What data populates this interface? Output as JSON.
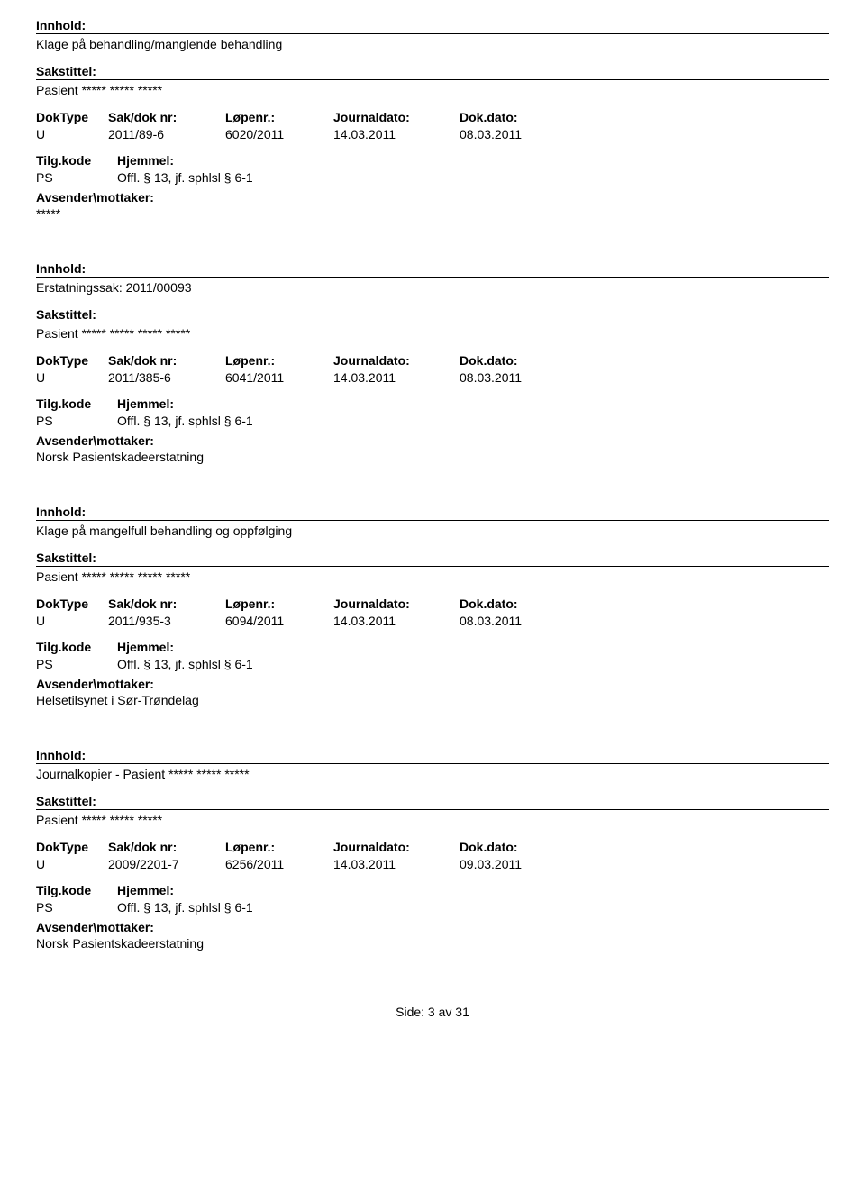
{
  "labels": {
    "innhold": "Innhold:",
    "sakstittel": "Sakstittel:",
    "doktype": "DokType",
    "sakdoknr": "Sak/dok nr:",
    "lopenr": "Løpenr.:",
    "journaldato": "Journaldato:",
    "dokdato": "Dok.dato:",
    "tilgkode": "Tilg.kode",
    "hjemmel": "Hjemmel:",
    "avsender": "Avsender\\mottaker:"
  },
  "records": [
    {
      "innhold": "Klage på behandling/manglende behandling",
      "sakstittel": "Pasient ***** ***** *****",
      "doktype": "U",
      "sakdoknr": "2011/89-6",
      "lopenr": "6020/2011",
      "journaldato": "14.03.2011",
      "dokdato": "08.03.2011",
      "tilgkode": "PS",
      "hjemmel": "Offl. § 13, jf. sphlsl § 6-1",
      "avsender": "*****"
    },
    {
      "innhold": "Erstatningssak: 2011/00093",
      "sakstittel": "Pasient ***** ***** ***** *****",
      "doktype": "U",
      "sakdoknr": "2011/385-6",
      "lopenr": "6041/2011",
      "journaldato": "14.03.2011",
      "dokdato": "08.03.2011",
      "tilgkode": "PS",
      "hjemmel": "Offl. § 13, jf. sphlsl § 6-1",
      "avsender": "Norsk Pasientskadeerstatning"
    },
    {
      "innhold": "Klage på mangelfull behandling og oppfølging",
      "sakstittel": "Pasient ***** ***** ***** *****",
      "doktype": "U",
      "sakdoknr": "2011/935-3",
      "lopenr": "6094/2011",
      "journaldato": "14.03.2011",
      "dokdato": "08.03.2011",
      "tilgkode": "PS",
      "hjemmel": "Offl. § 13, jf. sphlsl § 6-1",
      "avsender": "Helsetilsynet i Sør-Trøndelag"
    },
    {
      "innhold": "Journalkopier - Pasient ***** ***** *****",
      "sakstittel": "Pasient ***** ***** *****",
      "doktype": "U",
      "sakdoknr": "2009/2201-7",
      "lopenr": "6256/2011",
      "journaldato": "14.03.2011",
      "dokdato": "09.03.2011",
      "tilgkode": "PS",
      "hjemmel": "Offl. § 13, jf. sphlsl § 6-1",
      "avsender": "Norsk Pasientskadeerstatning"
    }
  ],
  "footer": "Side: 3 av 31"
}
